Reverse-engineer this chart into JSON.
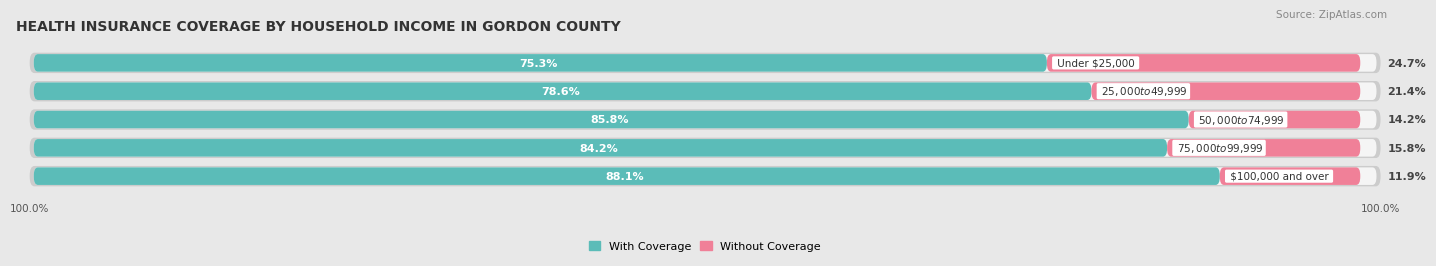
{
  "title": "HEALTH INSURANCE COVERAGE BY HOUSEHOLD INCOME IN GORDON COUNTY",
  "source": "Source: ZipAtlas.com",
  "categories": [
    "Under $25,000",
    "$25,000 to $49,999",
    "$50,000 to $74,999",
    "$75,000 to $99,999",
    "$100,000 and over"
  ],
  "with_coverage": [
    75.3,
    78.6,
    85.8,
    84.2,
    88.1
  ],
  "without_coverage": [
    24.7,
    21.4,
    14.2,
    15.8,
    11.9
  ],
  "bar_color_coverage": "#5bbcb8",
  "bar_color_no_coverage": "#f08098",
  "background_color": "#e8e8e8",
  "bar_bg_color": "#d8d8d8",
  "bar_bg_inner_color": "#f5f5f5",
  "title_fontsize": 10,
  "source_fontsize": 7.5,
  "label_fontsize": 8,
  "category_fontsize": 7.5,
  "legend_fontsize": 8,
  "bar_height": 0.62,
  "total_width": 100.0
}
